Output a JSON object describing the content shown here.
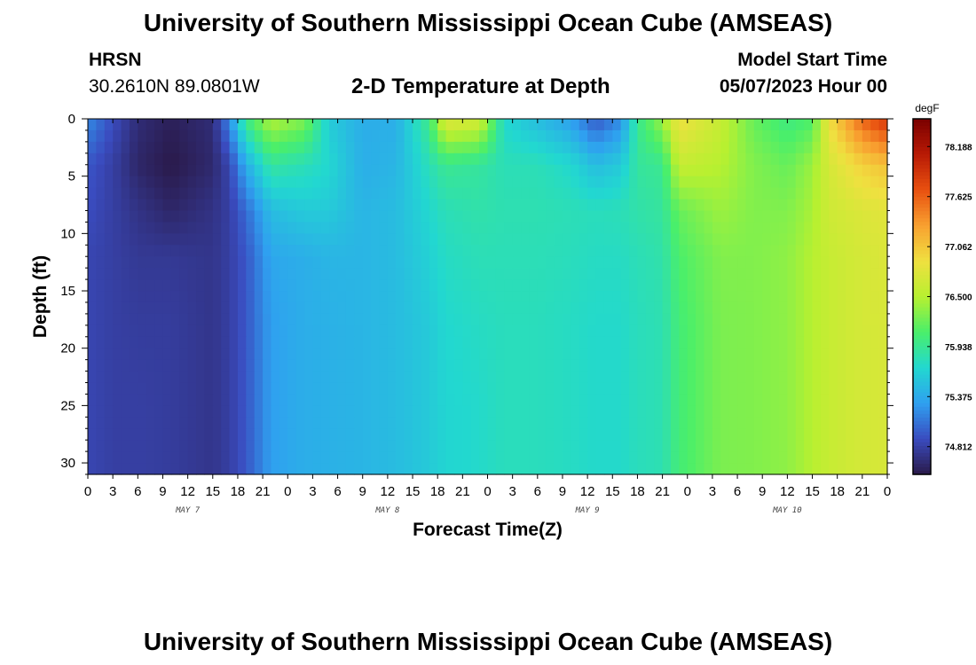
{
  "header": {
    "title": "University of Southern Mississippi Ocean Cube (AMSEAS)",
    "station": "HRSN",
    "coords": "30.2610N  89.0801W",
    "subtitle": "2-D Temperature at Depth",
    "model_start_label": "Model Start Time",
    "model_start": "05/07/2023 Hour 00"
  },
  "footer": {
    "title": "University of Southern Mississippi Ocean Cube (AMSEAS)"
  },
  "chart_data": {
    "type": "heatmap",
    "title": "2-D Temperature at Depth",
    "xlabel": "Forecast Time(Z)",
    "ylabel": "Depth (ft)",
    "x_range_hours": [
      0,
      96
    ],
    "y_range_ft": [
      0,
      31
    ],
    "x_tick_labels": [
      "0",
      "3",
      "6",
      "9",
      "12",
      "15",
      "18",
      "21",
      "0",
      "3",
      "6",
      "9",
      "12",
      "15",
      "18",
      "21",
      "0",
      "3",
      "6",
      "9",
      "12",
      "15",
      "18",
      "21",
      "0",
      "3",
      "6",
      "9",
      "12",
      "15",
      "18",
      "21",
      "0"
    ],
    "y_ticks": [
      0,
      5,
      10,
      15,
      20,
      25,
      30
    ],
    "day_labels": [
      {
        "label": "MAY 7",
        "hour": 12
      },
      {
        "label": "MAY 8",
        "hour": 36
      },
      {
        "label": "MAY 9",
        "hour": 60
      },
      {
        "label": "MAY 10",
        "hour": 84
      }
    ],
    "colorbar": {
      "unit": "degF",
      "min": 74.5,
      "max": 78.5,
      "tick_labels": [
        "78.188",
        "77.625",
        "77.062",
        "76.500",
        "75.938",
        "75.375",
        "74.812"
      ],
      "colors": [
        "#2a1a4a",
        "#3a4cc0",
        "#2fa0f0",
        "#22d8d0",
        "#4aef6a",
        "#b8f030",
        "#f0e040",
        "#f8a030",
        "#e85010",
        "#b81a05",
        "#7a0000"
      ]
    },
    "anchors": [
      {
        "hour": 0,
        "temp": [
          75.2,
          74.95,
          74.9,
          74.85,
          74.85,
          74.85,
          74.85
        ]
      },
      {
        "hour": 3,
        "temp": [
          74.9,
          74.8,
          74.8,
          74.8,
          74.8,
          74.8,
          74.8
        ]
      },
      {
        "hour": 6,
        "temp": [
          74.65,
          74.6,
          74.7,
          74.75,
          74.78,
          74.8,
          74.8
        ]
      },
      {
        "hour": 10,
        "temp": [
          74.55,
          74.5,
          74.6,
          74.75,
          74.78,
          74.78,
          74.78
        ]
      },
      {
        "hour": 15,
        "temp": [
          74.65,
          74.62,
          74.7,
          74.72,
          74.72,
          74.72,
          74.72
        ]
      },
      {
        "hour": 17,
        "temp": [
          75.2,
          74.85,
          74.8,
          74.8,
          74.8,
          74.8,
          74.8
        ]
      },
      {
        "hour": 19,
        "temp": [
          76.0,
          75.4,
          75.05,
          74.95,
          74.95,
          74.95,
          74.95
        ]
      },
      {
        "hour": 22,
        "temp": [
          76.5,
          75.9,
          75.5,
          75.35,
          75.3,
          75.3,
          75.3
        ]
      },
      {
        "hour": 26,
        "temp": [
          76.3,
          75.8,
          75.6,
          75.4,
          75.4,
          75.4,
          75.4
        ]
      },
      {
        "hour": 29,
        "temp": [
          75.6,
          75.7,
          75.6,
          75.45,
          75.42,
          75.42,
          75.42
        ]
      },
      {
        "hour": 33,
        "temp": [
          75.4,
          75.4,
          75.45,
          75.45,
          75.45,
          75.45,
          75.45
        ]
      },
      {
        "hour": 37,
        "temp": [
          75.4,
          75.45,
          75.5,
          75.5,
          75.5,
          75.5,
          75.5
        ]
      },
      {
        "hour": 41,
        "temp": [
          76.0,
          75.8,
          75.7,
          75.65,
          75.6,
          75.6,
          75.6
        ]
      },
      {
        "hour": 43,
        "temp": [
          76.8,
          75.95,
          75.8,
          75.75,
          75.7,
          75.68,
          75.68
        ]
      },
      {
        "hour": 47,
        "temp": [
          76.7,
          75.9,
          75.85,
          75.8,
          75.75,
          75.72,
          75.72
        ]
      },
      {
        "hour": 50,
        "temp": [
          75.7,
          75.8,
          75.82,
          75.8,
          75.78,
          75.78,
          75.78
        ]
      },
      {
        "hour": 54,
        "temp": [
          75.5,
          75.8,
          75.82,
          75.8,
          75.78,
          75.78,
          75.78
        ]
      },
      {
        "hour": 58,
        "temp": [
          75.3,
          75.7,
          75.8,
          75.78,
          75.75,
          75.75,
          75.75
        ]
      },
      {
        "hour": 61,
        "temp": [
          74.95,
          75.5,
          75.78,
          75.75,
          75.72,
          75.72,
          75.72
        ]
      },
      {
        "hour": 64,
        "temp": [
          75.2,
          75.6,
          75.8,
          75.75,
          75.72,
          75.72,
          75.72
        ]
      },
      {
        "hour": 66,
        "temp": [
          75.95,
          75.9,
          75.85,
          75.8,
          75.78,
          75.78,
          75.78
        ]
      },
      {
        "hour": 69,
        "temp": [
          76.4,
          75.95,
          75.9,
          75.85,
          75.82,
          75.82,
          75.82
        ]
      },
      {
        "hour": 71,
        "temp": [
          76.9,
          76.6,
          76.2,
          76.1,
          76.05,
          76.05,
          76.05
        ]
      },
      {
        "hour": 76,
        "temp": [
          76.6,
          76.5,
          76.4,
          76.3,
          76.28,
          76.28,
          76.28
        ]
      },
      {
        "hour": 80,
        "temp": [
          76.2,
          76.3,
          76.3,
          76.3,
          76.3,
          76.3,
          76.3
        ]
      },
      {
        "hour": 84,
        "temp": [
          76.0,
          76.2,
          76.3,
          76.35,
          76.35,
          76.35,
          76.35
        ]
      },
      {
        "hour": 87,
        "temp": [
          76.1,
          76.4,
          76.45,
          76.5,
          76.5,
          76.5,
          76.5
        ]
      },
      {
        "hour": 89,
        "temp": [
          76.9,
          76.7,
          76.65,
          76.6,
          76.6,
          76.6,
          76.6
        ]
      },
      {
        "hour": 93,
        "temp": [
          77.6,
          77.0,
          76.75,
          76.7,
          76.7,
          76.7,
          76.7
        ]
      },
      {
        "hour": 96,
        "temp": [
          77.9,
          77.1,
          76.8,
          76.75,
          76.72,
          76.72,
          76.72
        ]
      }
    ],
    "anchor_depths_ft": [
      0,
      4,
      8,
      12,
      18,
      25,
      31
    ]
  }
}
